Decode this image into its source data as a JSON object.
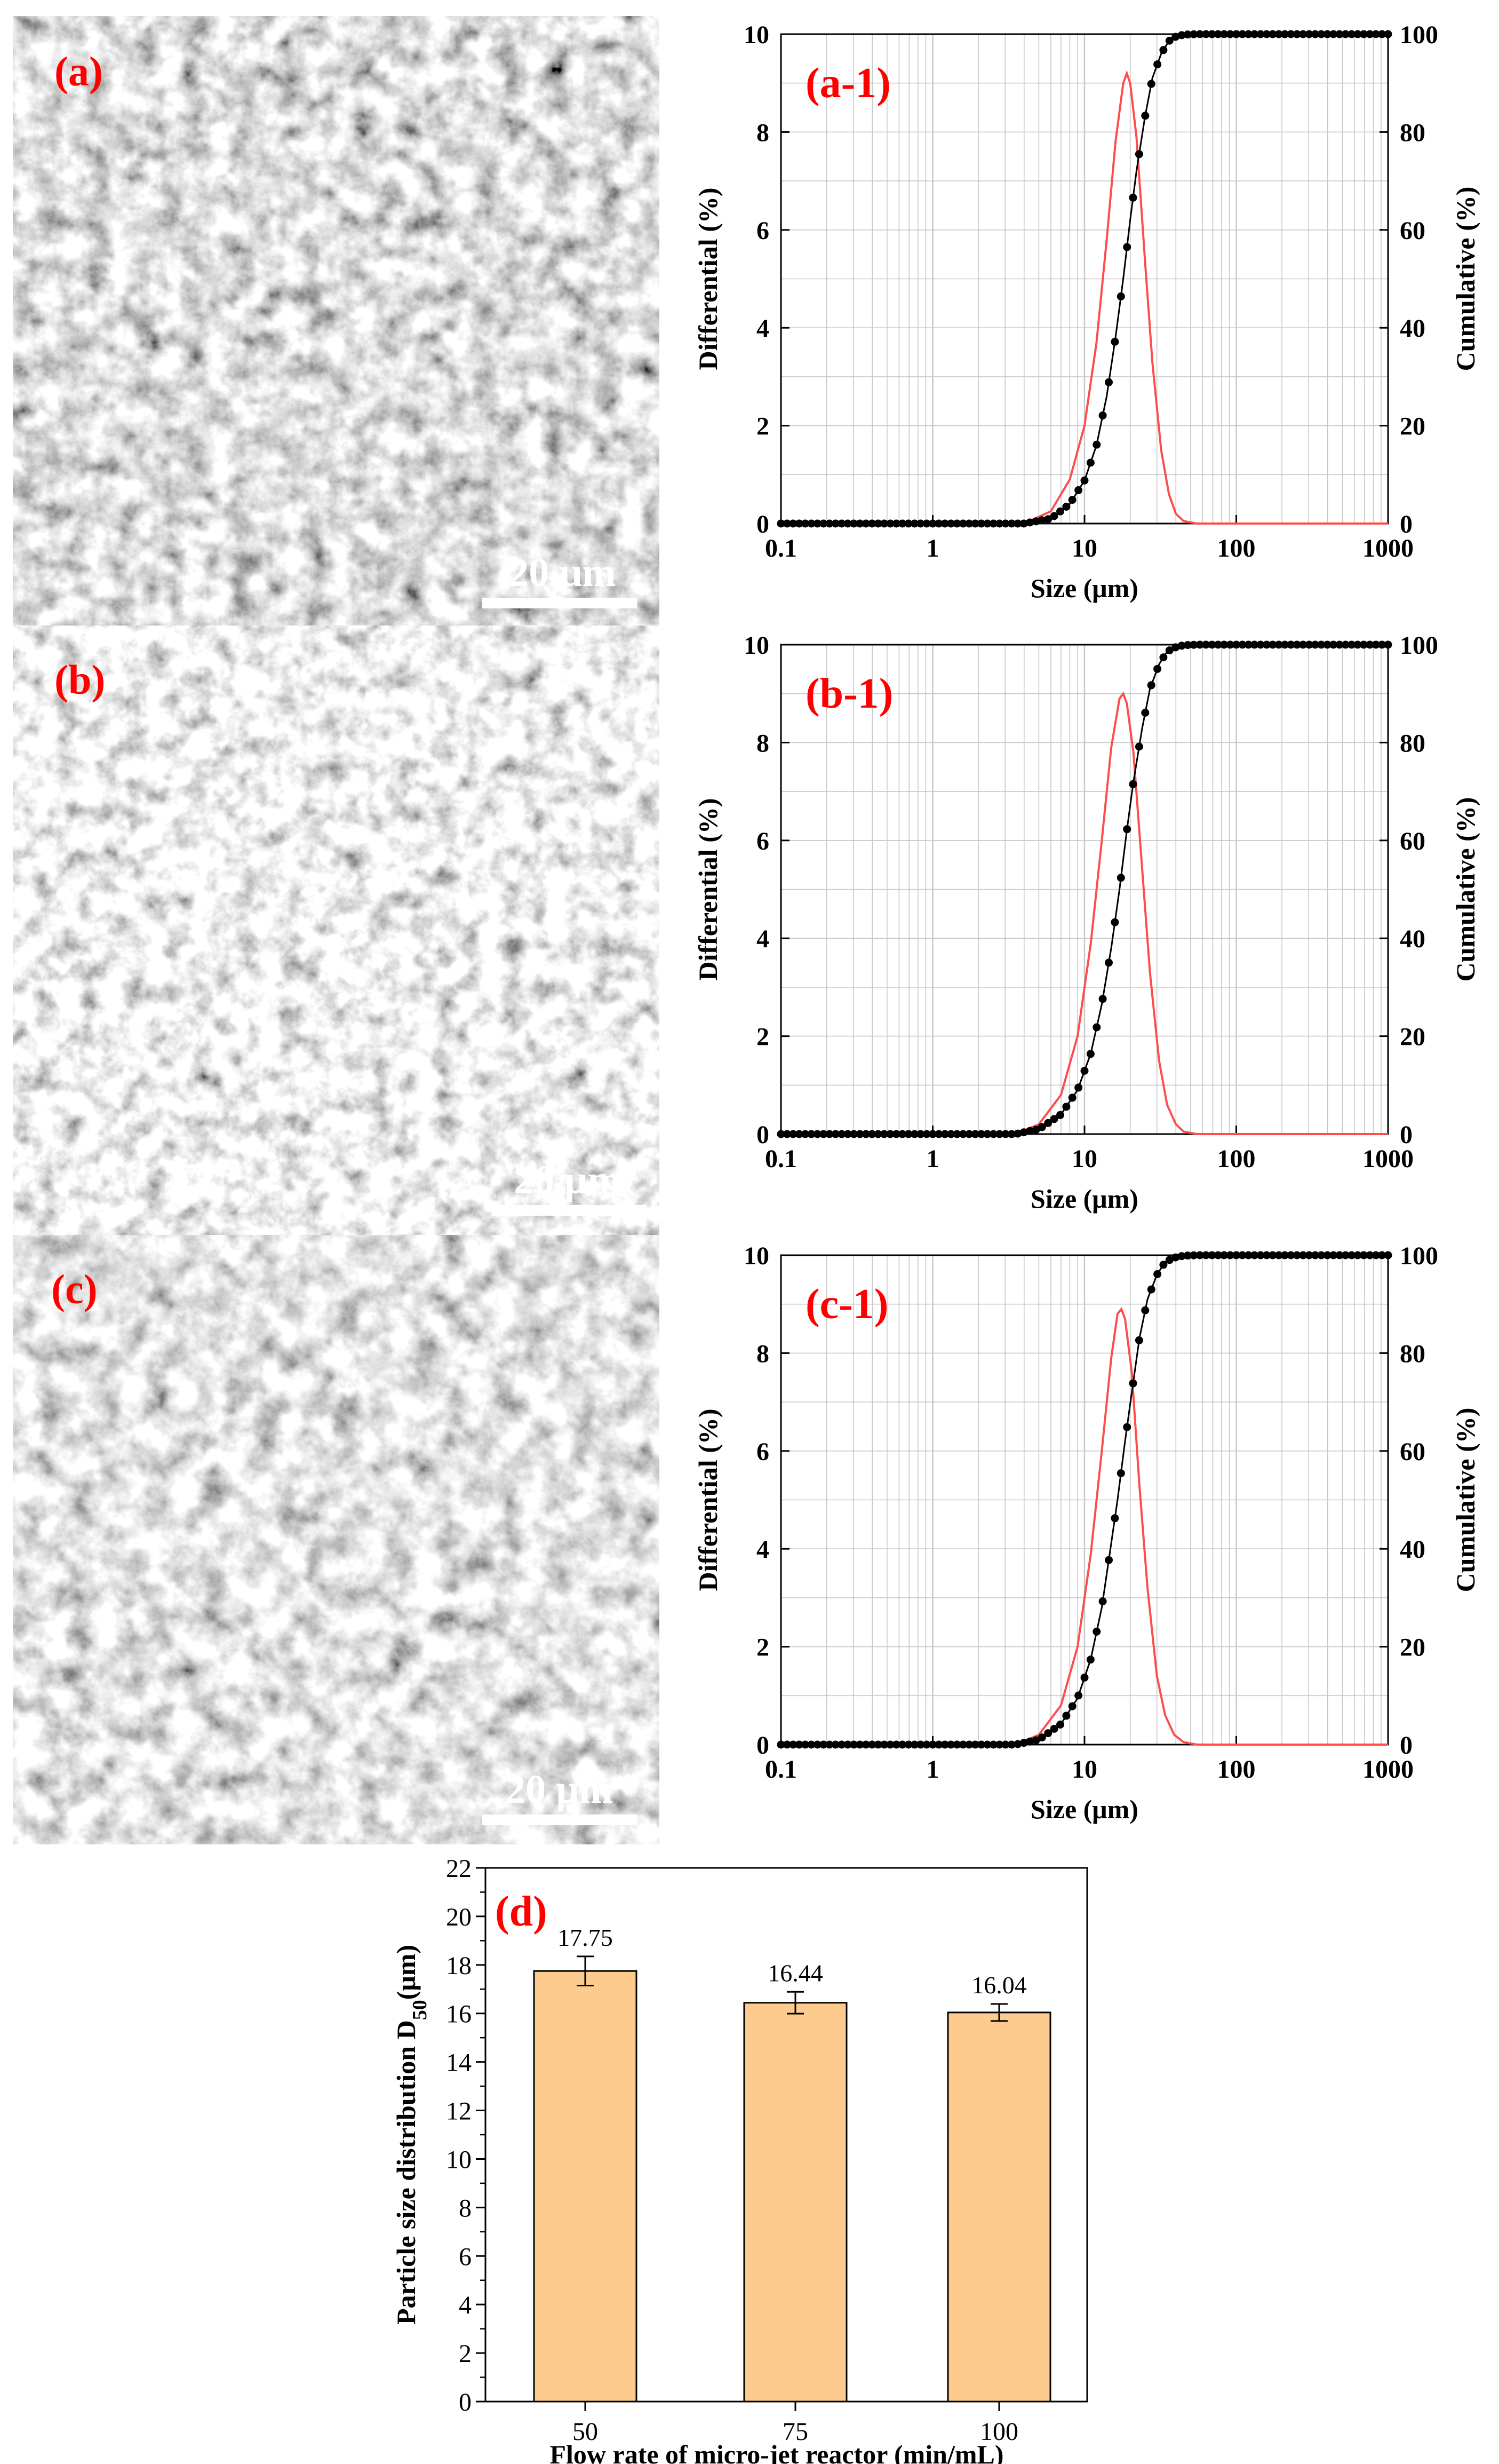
{
  "colors": {
    "differential_line": "#ff4d4d",
    "cumulative_line": "#000000",
    "panel_label": "#ff0000",
    "bar_fill": "#fdcb8d",
    "grid": "#c8c8c8",
    "sem_background": "#3a3a3a",
    "scale_bar": "#ffffff"
  },
  "sem_images": [
    {
      "label": "(a)",
      "scale_text": "20 μm"
    },
    {
      "label": "(b)",
      "scale_text": "20 μm"
    },
    {
      "label": "(c)",
      "scale_text": "20 μm"
    }
  ],
  "chart_data": [
    {
      "type": "line",
      "panel_label": "(a-1)",
      "xlabel": "Size (μm)",
      "ylabel_left": "Differential (%)",
      "ylabel_right": "Cumulative (%)",
      "x_scale": "log",
      "xlim": [
        0.1,
        1000
      ],
      "ylim_left": [
        0,
        10
      ],
      "ylim_right": [
        0,
        100
      ],
      "x_ticks": [
        "0.1",
        "1",
        "10",
        "100",
        "1000"
      ],
      "y_ticks_left": [
        "0",
        "2",
        "4",
        "6",
        "8",
        "10"
      ],
      "y_ticks_right": [
        "0",
        "20",
        "40",
        "60",
        "80",
        "100"
      ],
      "series": [
        {
          "name": "Differential",
          "axis": "left",
          "style": "line",
          "color": "#ff4d4d",
          "x": [
            4,
            6,
            8,
            10,
            12,
            14,
            16,
            18,
            19,
            20,
            22,
            25,
            28,
            32,
            36,
            40,
            45,
            55
          ],
          "y": [
            0,
            0.25,
            0.9,
            2.0,
            3.7,
            5.8,
            7.8,
            9.0,
            9.2,
            9.0,
            7.9,
            5.4,
            3.3,
            1.5,
            0.6,
            0.2,
            0.05,
            0
          ]
        },
        {
          "name": "Cumulative",
          "axis": "right",
          "style": "line+markers",
          "color": "#000000",
          "x": [
            4,
            6,
            8,
            10,
            12,
            14,
            16,
            18,
            20,
            22,
            25,
            28,
            32,
            36,
            40,
            45,
            55
          ],
          "y": [
            0,
            1.0,
            4.0,
            8.8,
            16,
            26,
            38,
            50,
            62,
            72,
            83,
            91,
            96,
            98.6,
            99.5,
            99.9,
            100
          ]
        }
      ]
    },
    {
      "type": "line",
      "panel_label": "(b-1)",
      "xlabel": "Size (μm)",
      "ylabel_left": "Differential (%)",
      "ylabel_right": "Cumulative (%)",
      "x_scale": "log",
      "xlim": [
        0.1,
        1000
      ],
      "ylim_left": [
        0,
        10
      ],
      "ylim_right": [
        0,
        100
      ],
      "x_ticks": [
        "0.1",
        "1",
        "10",
        "100",
        "1000"
      ],
      "y_ticks_left": [
        "0",
        "2",
        "4",
        "6",
        "8",
        "10"
      ],
      "y_ticks_right": [
        "0",
        "20",
        "40",
        "60",
        "80",
        "100"
      ],
      "series": [
        {
          "name": "Differential",
          "axis": "left",
          "style": "line",
          "color": "#ff4d4d",
          "x": [
            3.5,
            5,
            7,
            9,
            11,
            13,
            15,
            17,
            18,
            19,
            21,
            24,
            27,
            31,
            35,
            40,
            45,
            55
          ],
          "y": [
            0,
            0.2,
            0.8,
            2.0,
            3.9,
            6.0,
            7.9,
            8.9,
            9.0,
            8.8,
            7.8,
            5.4,
            3.3,
            1.5,
            0.6,
            0.2,
            0.05,
            0
          ]
        },
        {
          "name": "Cumulative",
          "axis": "right",
          "style": "line+markers",
          "color": "#000000",
          "x": [
            3.5,
            5,
            7,
            9,
            11,
            13,
            15,
            17,
            19,
            21,
            24,
            27,
            31,
            35,
            40,
            45,
            55
          ],
          "y": [
            0,
            1.0,
            4.0,
            9.0,
            16.5,
            26.5,
            38,
            50,
            62,
            72,
            83,
            91,
            96,
            98.6,
            99.5,
            99.9,
            100
          ]
        }
      ]
    },
    {
      "type": "line",
      "panel_label": "(c-1)",
      "xlabel": "Size (μm)",
      "ylabel_left": "Differential (%)",
      "ylabel_right": "Cumulative (%)",
      "x_scale": "log",
      "xlim": [
        0.1,
        1000
      ],
      "ylim_left": [
        0,
        10
      ],
      "ylim_right": [
        0,
        100
      ],
      "x_ticks": [
        "0.1",
        "1",
        "10",
        "100",
        "1000"
      ],
      "y_ticks_left": [
        "0",
        "2",
        "4",
        "6",
        "8",
        "10"
      ],
      "y_ticks_right": [
        "0",
        "20",
        "40",
        "60",
        "80",
        "100"
      ],
      "series": [
        {
          "name": "Differential",
          "axis": "left",
          "style": "line",
          "color": "#ff4d4d",
          "x": [
            3.5,
            5,
            7,
            9,
            11,
            13,
            15,
            16.5,
            17.5,
            18.5,
            20.5,
            23,
            26,
            30,
            34,
            39,
            45,
            55
          ],
          "y": [
            0,
            0.2,
            0.8,
            2.0,
            3.9,
            6.0,
            7.9,
            8.8,
            8.9,
            8.7,
            7.6,
            5.3,
            3.2,
            1.4,
            0.6,
            0.2,
            0.05,
            0
          ]
        },
        {
          "name": "Cumulative",
          "axis": "right",
          "style": "line+markers",
          "color": "#000000",
          "x": [
            3.5,
            5,
            7,
            9,
            11,
            13,
            14.5,
            16.5,
            18.5,
            20.5,
            23,
            26,
            30,
            34,
            39,
            45,
            55
          ],
          "y": [
            0,
            1.0,
            4.2,
            9.5,
            17.5,
            28,
            38,
            50,
            62,
            72,
            83,
            91,
            96,
            98.6,
            99.5,
            99.9,
            100
          ]
        }
      ]
    },
    {
      "type": "bar",
      "panel_label": "(d)",
      "xlabel": "Flow rate of micro-jet reactor (min/mL)",
      "ylabel_main": "Particle size distribution D",
      "ylabel_sub": "50",
      "ylabel_unit": "(μm)",
      "categories": [
        "50",
        "75",
        "100"
      ],
      "values": [
        17.75,
        16.44,
        16.04
      ],
      "value_labels": [
        "17.75",
        "16.44",
        "16.04"
      ],
      "errors": [
        0.6,
        0.45,
        0.35
      ],
      "ylim": [
        0,
        22
      ],
      "y_ticks": [
        "0",
        "2",
        "4",
        "6",
        "8",
        "10",
        "12",
        "14",
        "16",
        "18",
        "20",
        "22"
      ]
    }
  ]
}
